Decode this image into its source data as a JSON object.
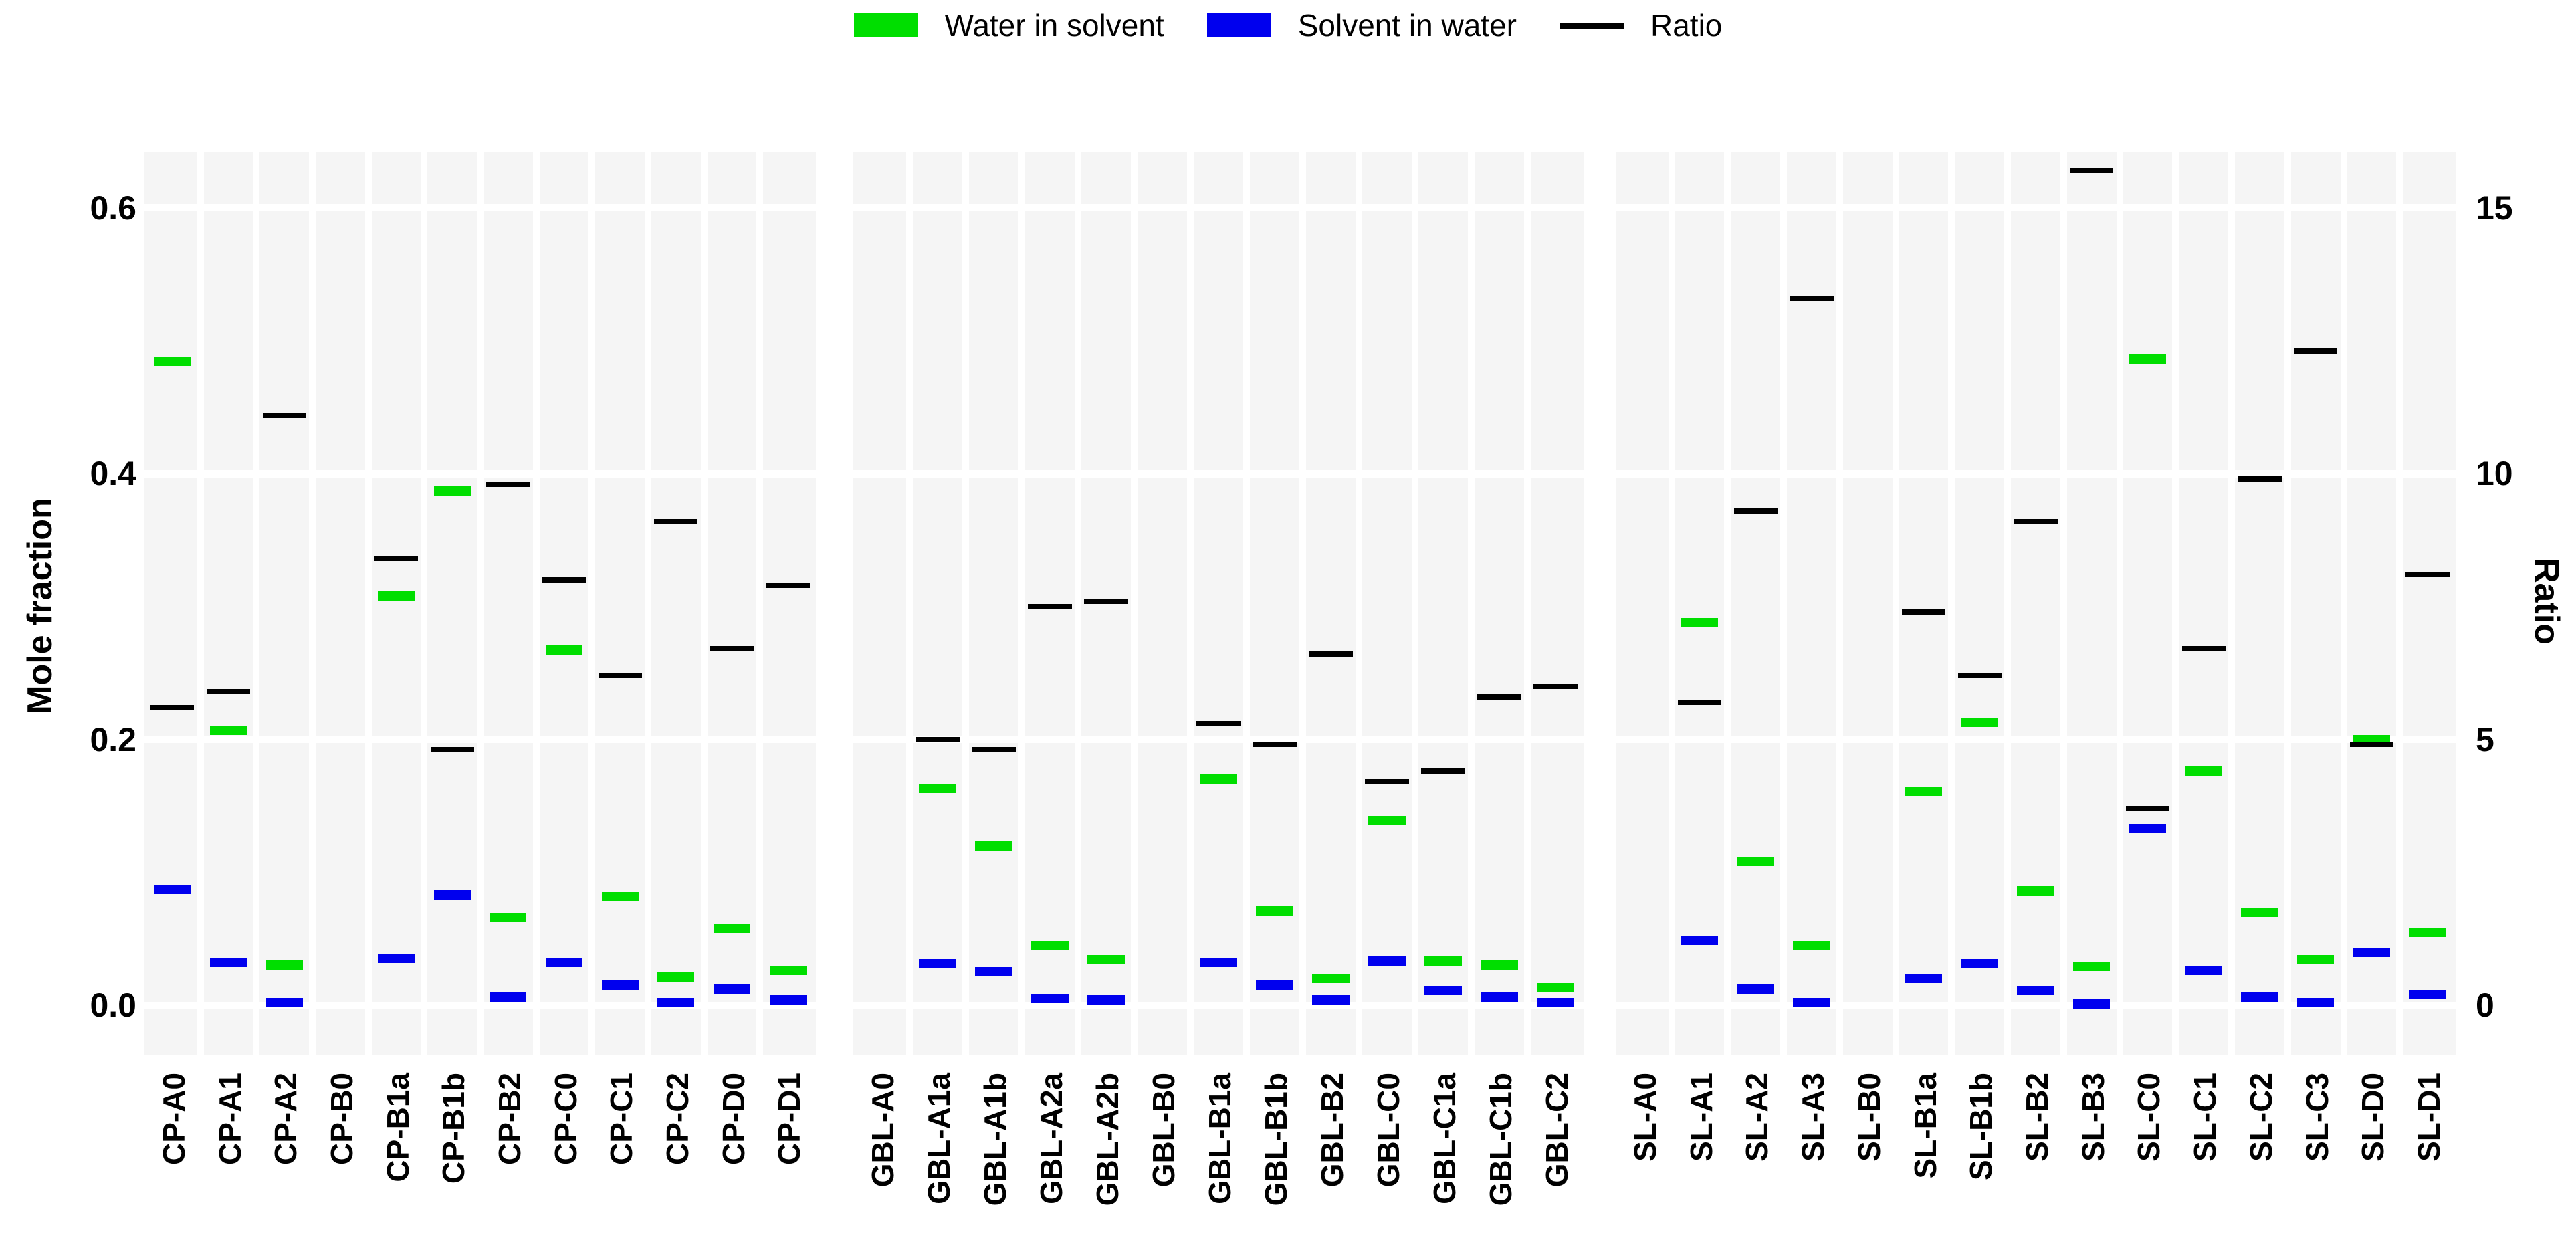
{
  "chart_data": {
    "type": "bar",
    "variant": "floating-tick-bars",
    "title": "",
    "legend": [
      {
        "label": "Water in solvent",
        "color": "#00DE00",
        "swatch": "box"
      },
      {
        "label": "Solvent in water",
        "color": "#0000EE",
        "swatch": "box"
      },
      {
        "label": "Ratio",
        "color": "#000000",
        "swatch": "line"
      }
    ],
    "left_axis": {
      "label": "Mole fraction",
      "tick_labels": [
        "0.0",
        "0.2",
        "0.4",
        "0.6"
      ],
      "tick_values": [
        0.0,
        0.2,
        0.4,
        0.6
      ],
      "range": [
        -0.04,
        0.64
      ],
      "grid": true
    },
    "right_axis": {
      "label": "Ratio",
      "tick_labels": [
        "0",
        "5",
        "10",
        "15"
      ],
      "tick_values": [
        0,
        5,
        10,
        15
      ],
      "ratio_per_mole_fraction": 25
    },
    "panels": [
      {
        "name": "CP",
        "categories": [
          "CP-A0",
          "CP-A1",
          "CP-A2",
          "CP-B0",
          "CP-B1a",
          "CP-B1b",
          "CP-B2",
          "CP-C0",
          "CP-C1",
          "CP-C2",
          "CP-D0",
          "CP-D1"
        ],
        "water_in_solvent": [
          0.484,
          0.207,
          0.03,
          null,
          0.308,
          0.387,
          0.066,
          0.267,
          0.082,
          0.021,
          0.058,
          0.026
        ],
        "solvent_in_water": [
          0.087,
          0.032,
          0.002,
          null,
          0.035,
          0.083,
          0.006,
          0.032,
          0.015,
          0.002,
          0.012,
          0.004
        ],
        "ratio": [
          5.6,
          5.9,
          11.1,
          null,
          8.4,
          4.8,
          9.8,
          8.0,
          6.2,
          9.1,
          6.7,
          7.9
        ]
      },
      {
        "name": "GBL",
        "categories": [
          "GBL-A0",
          "GBL-A1a",
          "GBL-A1b",
          "GBL-A2a",
          "GBL-A2b",
          "GBL-B0",
          "GBL-B1a",
          "GBL-B1b",
          "GBL-B2",
          "GBL-C0",
          "GBL-C1a",
          "GBL-C1b",
          "GBL-C2"
        ],
        "water_in_solvent": [
          null,
          0.163,
          0.12,
          0.045,
          0.034,
          null,
          0.17,
          0.071,
          0.02,
          0.139,
          0.033,
          0.03,
          0.013
        ],
        "solvent_in_water": [
          null,
          0.031,
          0.025,
          0.005,
          0.004,
          null,
          0.032,
          0.015,
          0.004,
          0.033,
          0.011,
          0.006,
          0.002
        ],
        "ratio": [
          null,
          5.0,
          4.8,
          7.5,
          7.6,
          null,
          5.3,
          4.9,
          6.6,
          4.2,
          4.4,
          5.8,
          6.0
        ]
      },
      {
        "name": "SL",
        "categories": [
          "SL-A0",
          "SL-A1",
          "SL-A2",
          "SL-A3",
          "SL-B0",
          "SL-B1a",
          "SL-B1b",
          "SL-B2",
          "SL-B3",
          "SL-C0",
          "SL-C1",
          "SL-C2",
          "SL-C3",
          "SL-D0",
          "SL-D1"
        ],
        "water_in_solvent": [
          null,
          0.288,
          0.108,
          0.045,
          null,
          0.161,
          0.213,
          0.086,
          0.029,
          0.486,
          0.176,
          0.07,
          0.034,
          0.2,
          0.055
        ],
        "solvent_in_water": [
          null,
          0.049,
          0.012,
          0.002,
          null,
          0.02,
          0.031,
          0.011,
          0.001,
          0.133,
          0.026,
          0.006,
          0.002,
          0.04,
          0.008
        ],
        "ratio": [
          null,
          5.7,
          9.3,
          13.3,
          null,
          7.4,
          6.2,
          9.1,
          15.7,
          3.7,
          6.7,
          9.9,
          12.3,
          4.9,
          8.1
        ]
      }
    ],
    "colors": {
      "water": "#00DE00",
      "solvent": "#0000EE",
      "ratio": "#000000",
      "panel_background": "#f5f5f5",
      "gridline": "#ffffff"
    }
  }
}
